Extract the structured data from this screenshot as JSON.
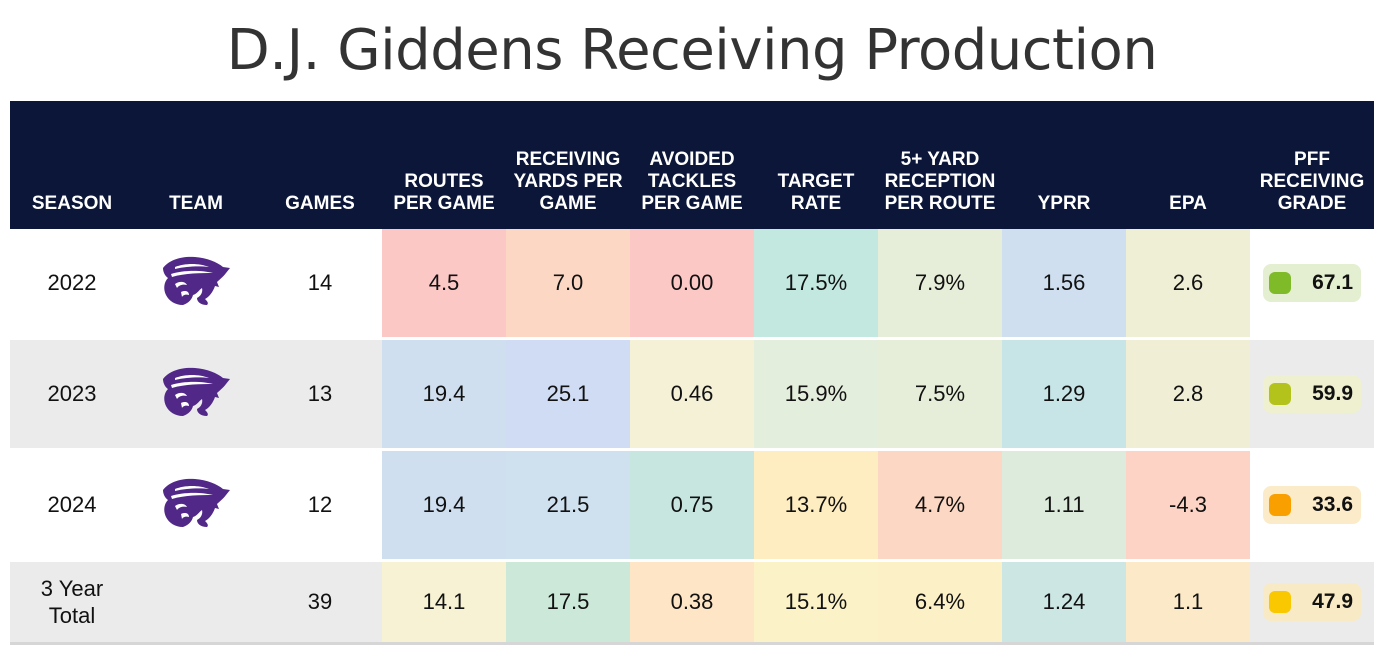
{
  "title": "D.J. Giddens Receiving Production",
  "headers": [
    "SEASON",
    "TEAM",
    "GAMES",
    "ROUTES PER GAME",
    "RECEIVING YARDS PER GAME",
    "AVOIDED TACKLES PER GAME",
    "TARGET RATE",
    "5+ YARD RECEPTION PER ROUTE",
    "YPRR",
    "EPA",
    "PFF RECEIVING GRADE"
  ],
  "team_logo_icon": "kansas-state-wildcat-logo",
  "logo_color": "#512888",
  "rows": [
    {
      "season": "2022",
      "games": "14",
      "stats": [
        "4.5",
        "7.0",
        "0.00",
        "17.5%",
        "7.9%",
        "1.56",
        "2.6"
      ],
      "stat_colors": [
        "#fcc8c6",
        "#fcd7c4",
        "#fcc8c6",
        "#c3e8e0",
        "#e6eed9",
        "#cfdff0",
        "#efefd6"
      ],
      "grade": "67.1",
      "grade_dot": "#7fba29",
      "grade_bg": "#e3efd0"
    },
    {
      "season": "2023",
      "games": "13",
      "stats": [
        "19.4",
        "25.1",
        "0.46",
        "15.9%",
        "7.5%",
        "1.29",
        "2.8"
      ],
      "stat_colors": [
        "#cfdff0",
        "#cfdcf4",
        "#f4f1d6",
        "#e4eedc",
        "#e6eed9",
        "#c7e5e7",
        "#f0efd5"
      ],
      "grade": "59.9",
      "grade_dot": "#b3c31b",
      "grade_bg": "#eef0d0"
    },
    {
      "season": "2024",
      "games": "12",
      "stats": [
        "19.4",
        "21.5",
        "0.75",
        "13.7%",
        "4.7%",
        "1.11",
        "-4.3"
      ],
      "stat_colors": [
        "#cfdff0",
        "#cfe0ef",
        "#c7e6e0",
        "#fdedc1",
        "#fcd8c4",
        "#dcebdb",
        "#fcd3c4"
      ],
      "grade": "33.6",
      "grade_dot": "#f9a000",
      "grade_bg": "#fcebc8"
    },
    {
      "season": "3 Year Total",
      "games": "39",
      "stats": [
        "14.1",
        "17.5",
        "0.38",
        "15.1%",
        "6.4%",
        "1.24",
        "1.1"
      ],
      "stat_colors": [
        "#f6f2d3",
        "#cbe8d8",
        "#fde5c6",
        "#fcf2c8",
        "#fcf0c6",
        "#cbe6e3",
        "#fbe9c7"
      ],
      "grade": "47.9",
      "grade_dot": "#f9c800",
      "grade_bg": "#f8eac4"
    }
  ]
}
